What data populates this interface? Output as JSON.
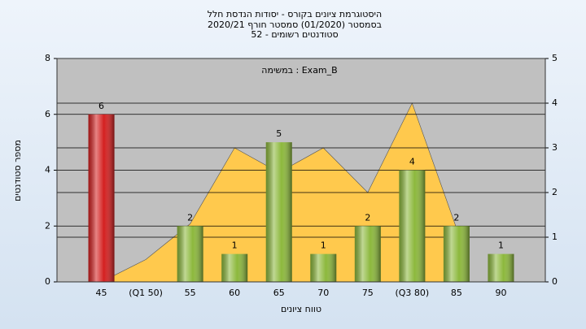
{
  "chart_data": {
    "type": "bar",
    "title": [
      "היסטוגרמת ציונים בקורס - יסודות הנדסת חלל",
      "בסמסטר  (01/2020)  סמסטר חורף  2020/21",
      "52 - סטודנטים רשומים"
    ],
    "annotation": "במשימה : Exam_B",
    "x_label": "טווח ציונים",
    "y_label": "מספר סטודנטים",
    "categories": [
      "45",
      "(Q1 50)",
      "55",
      "60",
      "65",
      "70",
      "75",
      "(Q3 80)",
      "85",
      "90"
    ],
    "series": [
      {
        "type": "bar",
        "values": [
          6,
          null,
          2,
          1,
          5,
          1,
          2,
          4,
          2,
          1
        ],
        "colors": [
          "#d42020",
          null,
          "#8cb83c",
          "#8cb83c",
          "#8cb83c",
          "#8cb83c",
          "#8cb83c",
          "#8cb83c",
          "#8cb83c",
          "#8cb83c"
        ]
      },
      {
        "type": "area",
        "axis": "y2",
        "color": "#ffc94d",
        "values": [
          0,
          0.5,
          1.3,
          3,
          2.45,
          3,
          2,
          4,
          1.2,
          null
        ]
      }
    ],
    "ylim": [
      0,
      8
    ],
    "yticks": [
      0,
      2,
      4,
      6,
      8
    ],
    "y2lim": [
      0,
      5
    ],
    "y2ticks": [
      0,
      1,
      2,
      3,
      4,
      5
    ],
    "grid": true
  }
}
